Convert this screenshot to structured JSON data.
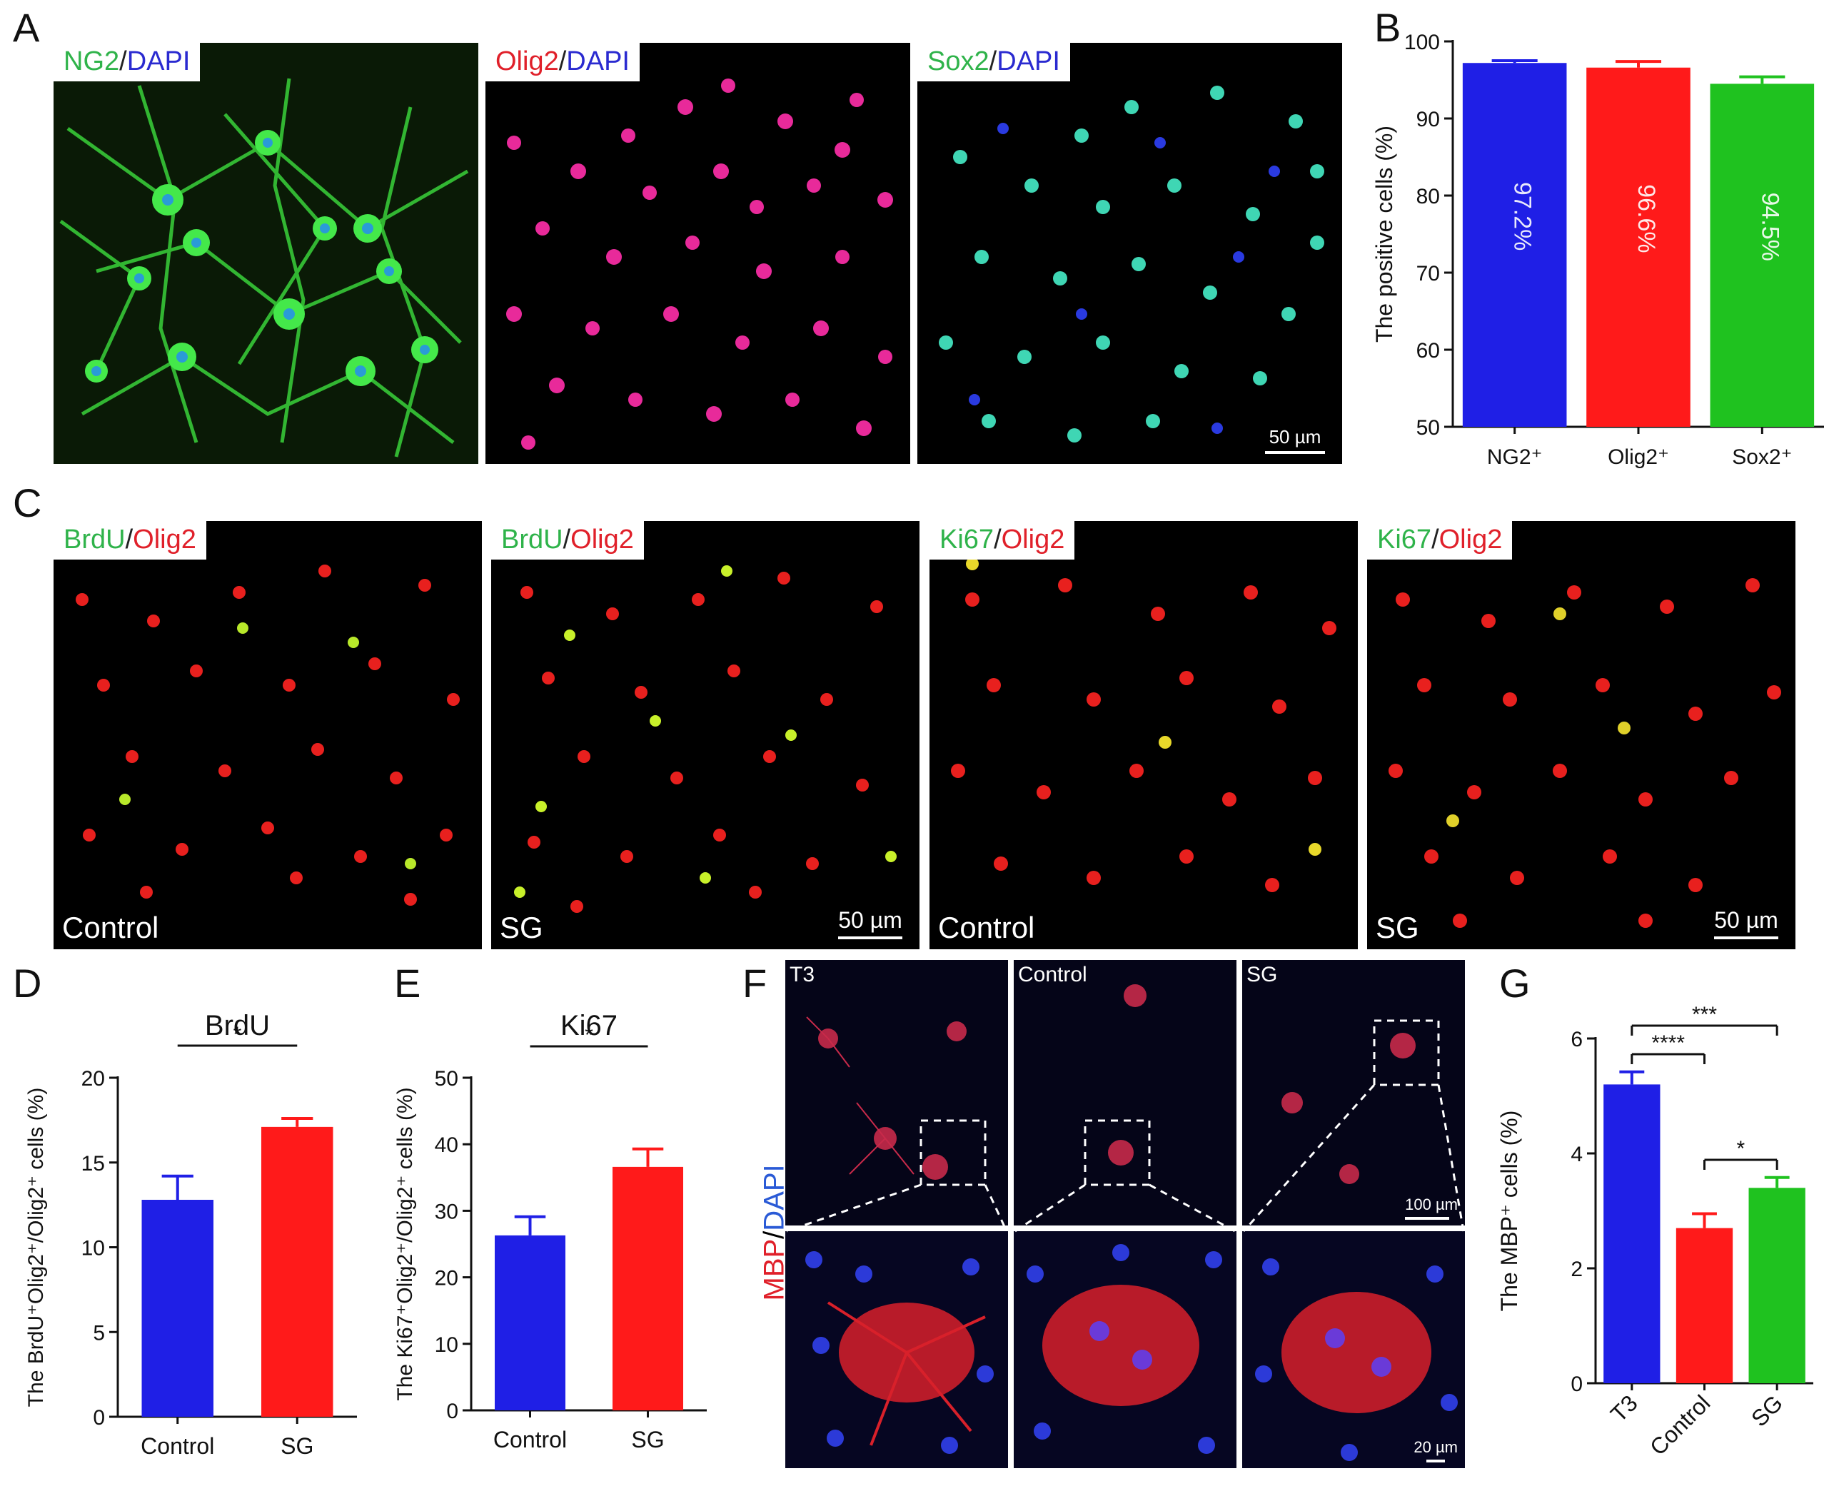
{
  "panel_letters": [
    "A",
    "B",
    "C",
    "D",
    "E",
    "F",
    "G"
  ],
  "panelA": {
    "images": [
      {
        "label_a": "NG2",
        "label_b": "DAPI",
        "color_a": "#2fb34a",
        "color_b": "#2a2ad0"
      },
      {
        "label_a": "Olig2",
        "label_b": "DAPI",
        "color_a": "#e0202a",
        "color_b": "#2a2ad0"
      },
      {
        "label_a": "Sox2",
        "label_b": "DAPI",
        "color_a": "#2fb34a",
        "color_b": "#2a2ad0"
      }
    ],
    "scale_bar": "50 µm"
  },
  "panelC": {
    "images": [
      {
        "label_a": "BrdU",
        "label_b": "Olig2",
        "group": "Control"
      },
      {
        "label_a": "BrdU",
        "label_b": "Olig2",
        "group": "SG"
      },
      {
        "label_a": "Ki67",
        "label_b": "Olig2",
        "group": "Control"
      },
      {
        "label_a": "Ki67",
        "label_b": "Olig2",
        "group": "SG"
      }
    ],
    "scale_bar": "50 µm"
  },
  "panelF": {
    "groups": [
      "T3",
      "Control",
      "SG"
    ],
    "side_label_a": "MBP",
    "side_label_b": "DAPI",
    "scale_top": "100 µm",
    "scale_bottom": "20 µm"
  },
  "chart_data": [
    {
      "id": "B",
      "type": "bar",
      "categories": [
        "NG2⁺",
        "Olig2⁺",
        "Sox2⁺"
      ],
      "values": [
        97.2,
        96.6,
        94.5
      ],
      "errors": [
        0.3,
        0.8,
        0.9
      ],
      "bar_labels": [
        "97.2%",
        "96.6%",
        "94.5%"
      ],
      "colors": [
        "#1f1fe6",
        "#ff1a1a",
        "#1fc21f"
      ],
      "title": "",
      "ylabel": "The positive cells (%)",
      "ylim": [
        50,
        100
      ],
      "yticks": [
        50,
        60,
        70,
        80,
        90,
        100
      ]
    },
    {
      "id": "D",
      "type": "bar",
      "title": "BrdU",
      "categories": [
        "Control",
        "SG"
      ],
      "values": [
        12.8,
        17.1
      ],
      "errors": [
        1.4,
        0.5
      ],
      "colors": [
        "#1f1fe6",
        "#ff1a1a"
      ],
      "ylabel": "The BrdU⁺Olig2⁺/Olig2⁺ cells (%)",
      "ylim": [
        0,
        20
      ],
      "yticks": [
        0,
        5,
        10,
        15,
        20
      ],
      "significance": [
        {
          "from": 0,
          "to": 1,
          "text": "*"
        }
      ]
    },
    {
      "id": "E",
      "type": "bar",
      "title": "Ki67",
      "categories": [
        "Control",
        "SG"
      ],
      "values": [
        26.3,
        36.6
      ],
      "errors": [
        2.8,
        2.7
      ],
      "colors": [
        "#1f1fe6",
        "#ff1a1a"
      ],
      "ylabel": "The Ki67⁺Olig2⁺/Olig2⁺ cells (%)",
      "ylim": [
        0,
        50
      ],
      "yticks": [
        0,
        10,
        20,
        30,
        40,
        50
      ],
      "significance": [
        {
          "from": 0,
          "to": 1,
          "text": "*"
        }
      ]
    },
    {
      "id": "G",
      "type": "bar",
      "title": "",
      "categories": [
        "T3",
        "Control",
        "SG"
      ],
      "values": [
        5.2,
        2.7,
        3.4
      ],
      "errors": [
        0.22,
        0.25,
        0.18
      ],
      "colors": [
        "#1f1fe6",
        "#ff1a1a",
        "#1fc21f"
      ],
      "ylabel": "The MBP⁺ cells (%)",
      "ylim": [
        0,
        6
      ],
      "yticks": [
        0,
        2,
        4,
        6
      ],
      "significance": [
        {
          "from": 0,
          "to": 2,
          "text": "***"
        },
        {
          "from": 0,
          "to": 1,
          "text": "****"
        },
        {
          "from": 1,
          "to": 2,
          "text": "*"
        }
      ]
    }
  ]
}
